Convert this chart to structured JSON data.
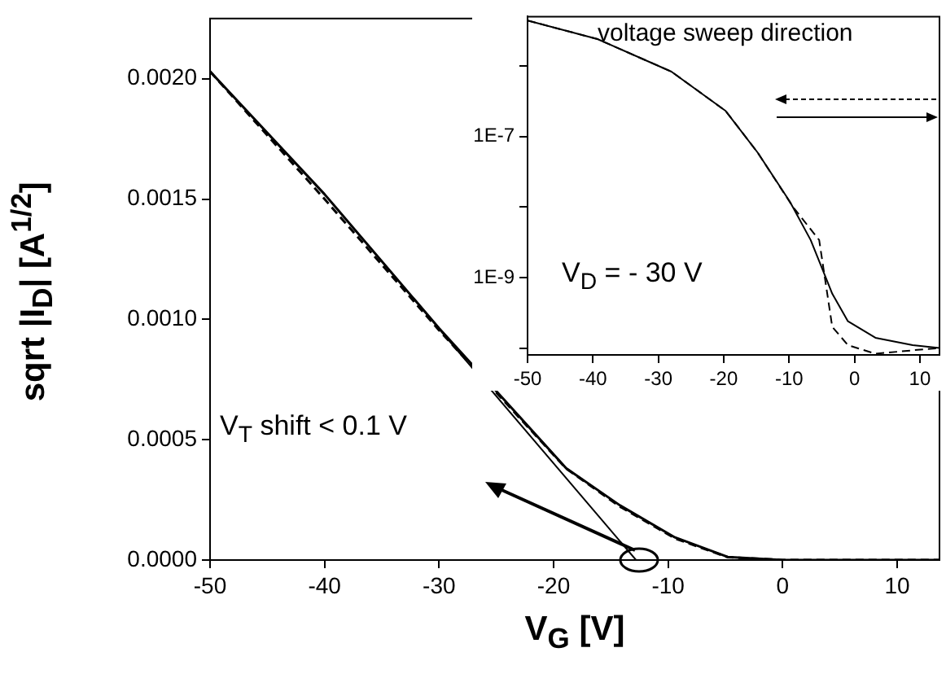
{
  "chart_data": [
    {
      "type": "line",
      "xlabel": "V$_{G}$ [V]",
      "ylabel": "sqrt |I$_{D}$| [A$^{1/2}$]",
      "x": [
        -50,
        -40,
        -30,
        -24.5,
        -18.9,
        -14.2,
        -9.4,
        -4.8,
        0,
        5,
        10,
        13.7
      ],
      "series": [
        {
          "color": "#000000",
          "line_style": "solid",
          "values": [
            0.00203,
            0.00152,
            0.000963,
            0.000676,
            0.000381,
            0.000227,
            9.4e-05,
            1.3e-05,
            0,
            0,
            0,
            0
          ]
        },
        {
          "color": "#000000",
          "line_style": "dashed",
          "values": [
            0.00203,
            0.0015,
            0.000955,
            0.00067,
            0.00038,
            0.000222,
            9e-05,
            1.2e-05,
            0,
            0,
            0,
            0
          ]
        },
        {
          "type": "line",
          "color": "#000000",
          "line_style": "solid",
          "x": [
            -30,
            -12.8
          ],
          "values": [
            0.00096,
            0
          ]
        }
      ],
      "xlim": [
        -50,
        13.7
      ],
      "xticks": [
        -50,
        -40,
        -30,
        -20,
        -10,
        0,
        10
      ],
      "ylim": [
        0,
        0.00225
      ],
      "yticks": [
        {
          "value": 0,
          "label": "0.0000"
        },
        {
          "value": 0.0005,
          "label": "0.0005"
        },
        {
          "value": 0.001,
          "label": "0.0010"
        },
        {
          "value": 0.0015,
          "label": "0.0015"
        },
        {
          "value": 0.002,
          "label": "0.0020"
        }
      ],
      "grid": false,
      "legend": false,
      "annotations": [
        "V$_{T}$ shift < 0.1 V"
      ]
    },
    {
      "type": "line",
      "log": "y",
      "series": [
        {
          "color": "#000000",
          "line_style": "solid",
          "x": [
            -50,
            -39.3,
            -28,
            -19.7,
            -14.8,
            -9.9,
            -6.7,
            -3.4,
            -1,
            3.2,
            8.9,
            13
          ],
          "values": [
            4.4e-06,
            2.4e-06,
            8.3e-07,
            2.3e-07,
            5.9e-08,
            1.2e-08,
            3.4e-09,
            5.9e-10,
            2.4e-10,
            1.4e-10,
            1.1e-10,
            1e-10
          ]
        },
        {
          "color": "#000000",
          "line_style": "dashed",
          "x": [
            -50,
            -39.3,
            -28,
            -19.7,
            -14.8,
            -9.4,
            -5.4,
            -3.4,
            -1,
            3.2,
            8.9,
            13
          ],
          "values": [
            4.4e-06,
            2.4e-06,
            8.3e-07,
            2.3e-07,
            5.9e-08,
            1e-08,
            3.4e-09,
            2e-10,
            1.1e-10,
            8.3e-11,
            9.3e-11,
            1e-10
          ]
        }
      ],
      "xlim": [
        -50,
        13
      ],
      "xticks": [
        -50,
        -40,
        -30,
        -20,
        -10,
        0,
        10
      ],
      "ylim": [
        8e-11,
        5e-06
      ],
      "yticks": [
        {
          "value": 1e-10,
          "label": null
        },
        {
          "value": 1e-09,
          "label": "1E-9"
        },
        {
          "value": 1e-08,
          "label": null
        },
        {
          "value": 1e-07,
          "label": "1E-7"
        },
        {
          "value": 1e-06,
          "label": null
        }
      ],
      "grid": false,
      "legend": false,
      "annotations": [
        "voltage sweep direction",
        "V$_{D}$ = - 30 V"
      ]
    }
  ]
}
